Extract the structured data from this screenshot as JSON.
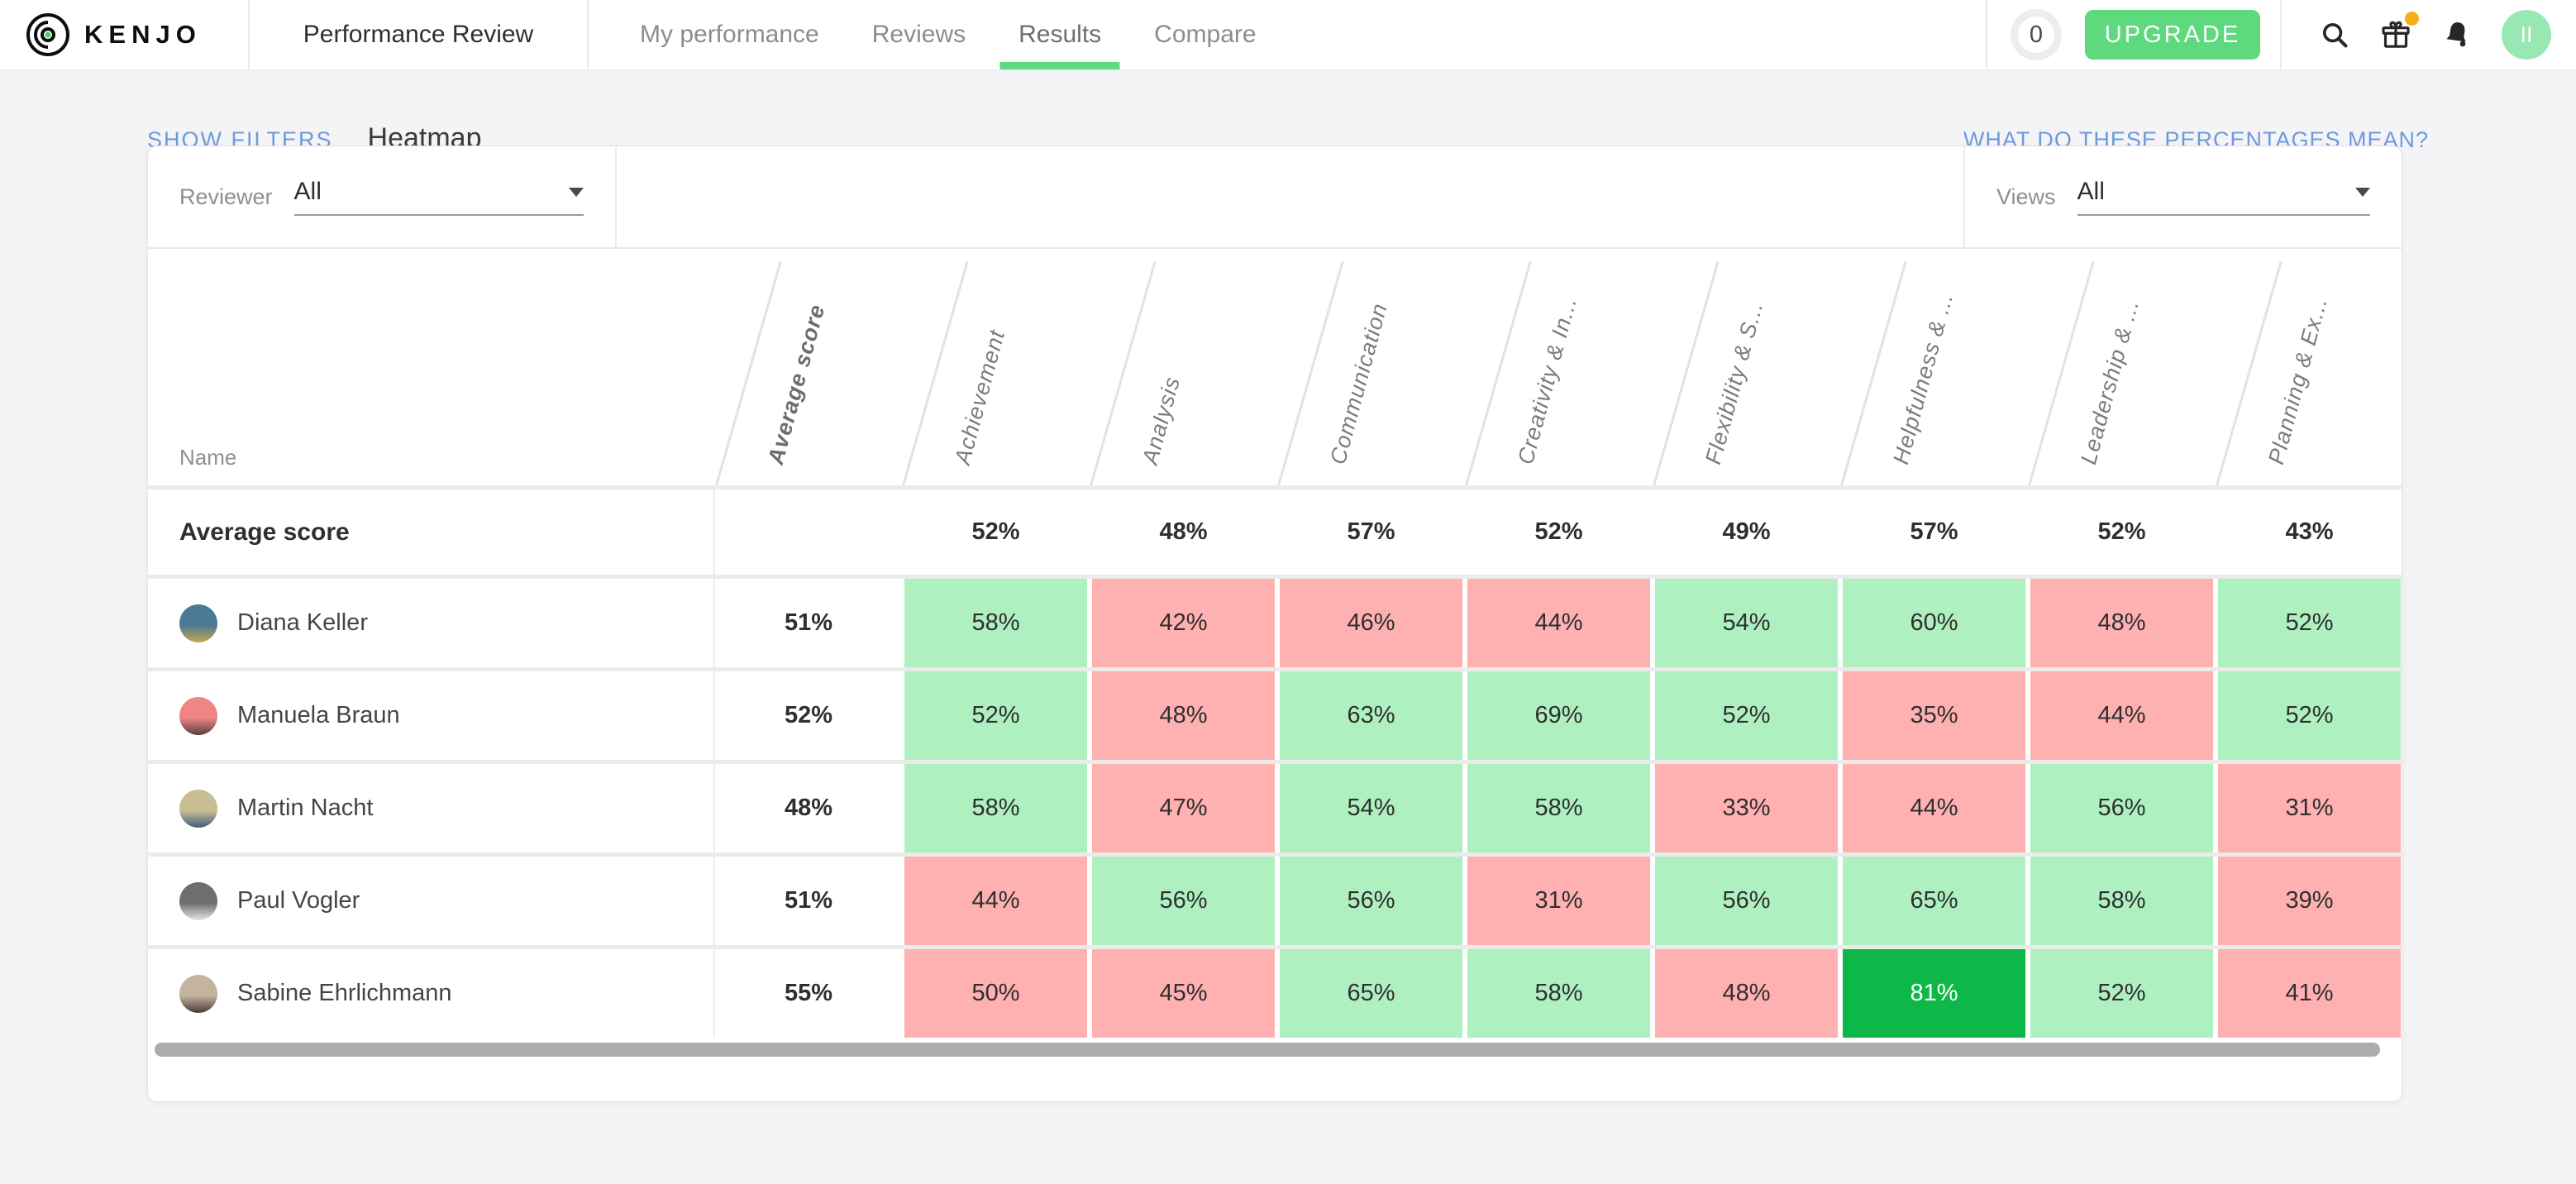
{
  "colors": {
    "accent_green": "#5ed97e",
    "link_blue": "#6d9ade",
    "cell_green": "#aff0c1",
    "cell_red": "#ffb0b1",
    "cell_bright_green": "#0eb848",
    "badge_orange": "#f5af1b",
    "avatar_green": "#99e8b4"
  },
  "topbar": {
    "brand": "KENJO",
    "app_title": "Performance Review",
    "tabs": [
      {
        "label": "My performance",
        "active": false
      },
      {
        "label": "Reviews",
        "active": false
      },
      {
        "label": "Results",
        "active": true
      },
      {
        "label": "Compare",
        "active": false
      }
    ],
    "credits": "0",
    "upgrade_label": "UPGRADE",
    "avatar_initials": "II",
    "icons": [
      "search-icon",
      "gift-icon",
      "bell-icon"
    ]
  },
  "page": {
    "show_filters": "SHOW FILTERS",
    "title": "Heatmap",
    "help_link": "WHAT DO THESE PERCENTAGES MEAN?"
  },
  "filters": {
    "reviewer_label": "Reviewer",
    "reviewer_value": "All",
    "views_label": "Views",
    "views_value": "All"
  },
  "heatmap": {
    "name_header": "Name",
    "columns": [
      "Average score",
      "Achievement",
      "Analysis",
      "Communication",
      "Creativity & In...",
      "Flexibility & S...",
      "Helpfulness & ...",
      "Leadership & ...",
      "Planning & Ex..."
    ],
    "average_row": {
      "label": "Average score",
      "values": [
        "52%",
        "48%",
        "57%",
        "52%",
        "49%",
        "57%",
        "52%",
        "43%"
      ]
    },
    "rows": [
      {
        "name": "Diana Keller",
        "avg": "51%",
        "avatar": {
          "c1": "#4b7a93",
          "c2": "#c9a94e"
        },
        "cells": [
          {
            "v": "58%",
            "c": "g"
          },
          {
            "v": "42%",
            "c": "r"
          },
          {
            "v": "46%",
            "c": "r"
          },
          {
            "v": "44%",
            "c": "r"
          },
          {
            "v": "54%",
            "c": "g"
          },
          {
            "v": "60%",
            "c": "g"
          },
          {
            "v": "48%",
            "c": "r"
          },
          {
            "v": "52%",
            "c": "g"
          }
        ]
      },
      {
        "name": "Manuela Braun",
        "avg": "52%",
        "avatar": {
          "c1": "#ef8585",
          "c2": "#5a3f3e"
        },
        "cells": [
          {
            "v": "52%",
            "c": "g"
          },
          {
            "v": "48%",
            "c": "r"
          },
          {
            "v": "63%",
            "c": "g"
          },
          {
            "v": "69%",
            "c": "g"
          },
          {
            "v": "52%",
            "c": "g"
          },
          {
            "v": "35%",
            "c": "r"
          },
          {
            "v": "44%",
            "c": "r"
          },
          {
            "v": "52%",
            "c": "g"
          }
        ]
      },
      {
        "name": "Martin Nacht",
        "avg": "48%",
        "avatar": {
          "c1": "#c9bd92",
          "c2": "#3f5e7e"
        },
        "cells": [
          {
            "v": "58%",
            "c": "g"
          },
          {
            "v": "47%",
            "c": "r"
          },
          {
            "v": "54%",
            "c": "g"
          },
          {
            "v": "58%",
            "c": "g"
          },
          {
            "v": "33%",
            "c": "r"
          },
          {
            "v": "44%",
            "c": "r"
          },
          {
            "v": "56%",
            "c": "g"
          },
          {
            "v": "31%",
            "c": "r"
          }
        ]
      },
      {
        "name": "Paul Vogler",
        "avg": "51%",
        "avatar": {
          "c1": "#6e6e6e",
          "c2": "#e8e6e2"
        },
        "cells": [
          {
            "v": "44%",
            "c": "r"
          },
          {
            "v": "56%",
            "c": "g"
          },
          {
            "v": "56%",
            "c": "g"
          },
          {
            "v": "31%",
            "c": "r"
          },
          {
            "v": "56%",
            "c": "g"
          },
          {
            "v": "65%",
            "c": "g"
          },
          {
            "v": "58%",
            "c": "g"
          },
          {
            "v": "39%",
            "c": "r"
          }
        ]
      },
      {
        "name": "Sabine Ehrlichmann",
        "avg": "55%",
        "avatar": {
          "c1": "#c4b39f",
          "c2": "#4a3a35"
        },
        "cells": [
          {
            "v": "50%",
            "c": "r"
          },
          {
            "v": "45%",
            "c": "r"
          },
          {
            "v": "65%",
            "c": "g"
          },
          {
            "v": "58%",
            "c": "g"
          },
          {
            "v": "48%",
            "c": "r"
          },
          {
            "v": "81%",
            "c": "G"
          },
          {
            "v": "52%",
            "c": "g"
          },
          {
            "v": "41%",
            "c": "r"
          }
        ]
      }
    ]
  }
}
